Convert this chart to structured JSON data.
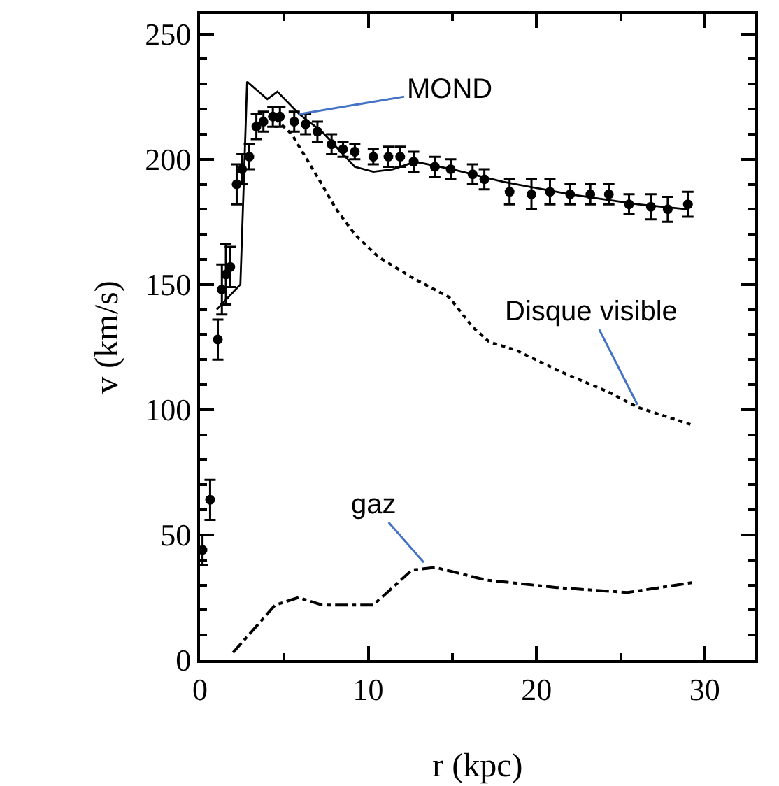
{
  "chart_data": {
    "type": "scatter",
    "xlabel": "r (kpc)",
    "ylabel": "v (km/s)",
    "xlim": [
      0,
      33
    ],
    "ylim": [
      0,
      258
    ],
    "xticks": [
      0,
      10,
      20,
      30
    ],
    "yticks": [
      0,
      50,
      100,
      150,
      200,
      250
    ],
    "grid": false,
    "marker": "circle",
    "series": [
      {
        "color": "#000000",
        "x": [
          0.15,
          0.6,
          1.06,
          1.3,
          1.54,
          1.8,
          2.18,
          2.5,
          2.93,
          3.35,
          3.77,
          4.33,
          4.75,
          5.6,
          6.28,
          6.98,
          7.82,
          8.5,
          9.2,
          10.3,
          11.2,
          11.9,
          12.7,
          13.96,
          14.9,
          16.2,
          16.9,
          18.4,
          19.7,
          20.8,
          22.0,
          23.2,
          24.3,
          25.5,
          26.8,
          27.8,
          29.0
        ],
        "values": [
          44,
          64,
          128,
          148,
          154,
          157,
          190,
          196,
          201,
          213,
          215,
          217,
          217,
          215,
          214,
          211,
          206,
          204,
          203,
          201,
          201,
          201,
          199,
          197,
          196,
          194,
          192,
          187,
          186,
          187,
          186,
          186,
          186,
          182,
          181,
          180,
          182
        ],
        "errors": [
          6,
          8,
          8,
          10,
          12,
          8,
          8,
          6,
          5,
          5,
          4,
          4,
          4,
          4,
          4,
          4,
          4,
          3,
          3,
          3,
          4,
          4,
          4,
          4,
          4,
          4,
          4,
          5,
          6,
          5,
          4,
          4,
          4,
          4,
          5,
          5,
          5
        ]
      },
      {
        "type": "line",
        "color": "#000000",
        "line_style": "solid",
        "marker": "none",
        "x": [
          1.0,
          2.4,
          2.6,
          2.8,
          4.0,
          4.6,
          5.9,
          7.25,
          9.2,
          10.3,
          11.45,
          12.8,
          15,
          18,
          22,
          26,
          29
        ],
        "values": [
          140,
          150,
          190,
          231,
          224,
          227,
          218,
          211,
          197,
          195,
          196,
          199,
          196,
          191,
          186,
          182,
          180
        ]
      },
      {
        "type": "line",
        "color": "#000000",
        "line_style": "dotted",
        "marker": "none",
        "x": [
          4.5,
          5.45,
          6.98,
          8.1,
          9.2,
          10.6,
          12.8,
          14.8,
          16.2,
          17.2,
          18.7,
          21.5,
          24.3,
          26,
          29.2
        ],
        "values": [
          216,
          210,
          193,
          180,
          170,
          161,
          152,
          145,
          133,
          127,
          124,
          115,
          107,
          101,
          94
        ]
      },
      {
        "type": "line",
        "color": "#000000",
        "line_style": "dashed",
        "marker": "none",
        "x": [
          1.96,
          4.47,
          5.86,
          7.26,
          10.3,
          12.6,
          14,
          17,
          21.2,
          25.4,
          29.3
        ],
        "values": [
          3,
          22,
          25,
          22,
          22,
          36,
          37,
          32,
          29,
          27,
          31
        ]
      }
    ],
    "annotations": [
      {
        "text": "MOND",
        "x": 5.9,
        "y": 218
      },
      {
        "text": "Disque visible",
        "x": 26,
        "y": 102
      },
      {
        "text": "gaz",
        "x": 13.3,
        "y": 39
      }
    ]
  }
}
